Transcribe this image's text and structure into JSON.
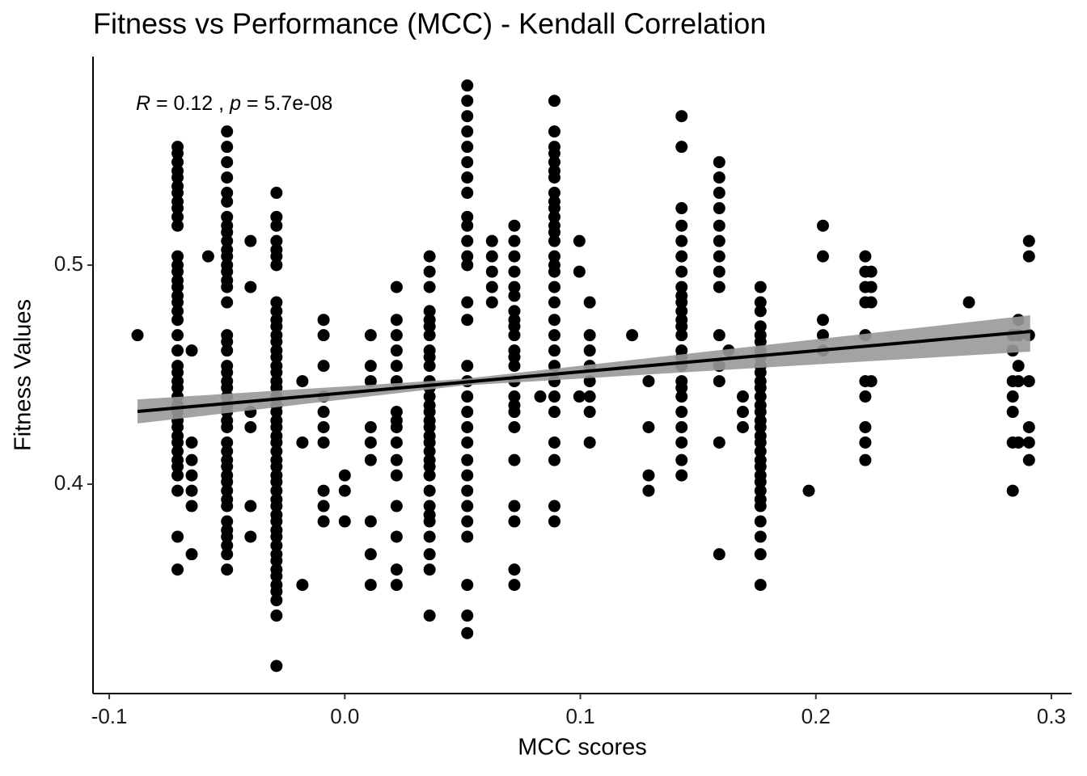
{
  "chart_data": {
    "type": "scatter",
    "title": "Fitness vs Performance (MCC) - Kendall Correlation",
    "x_label": "MCC scores",
    "y_label": "Fitness Values",
    "annotation": [
      "R",
      " = 0.12 , ",
      "p",
      " = 5.7e-08"
    ],
    "xlim": [
      -0.1069,
      0.3086
    ],
    "ylim": [
      0.3044,
      0.5952
    ],
    "xticks": [
      -0.1,
      {
        "value": 0,
        "label": "0.0"
      },
      0.1,
      0.2,
      0.3
    ],
    "yticks": [
      0.4,
      0.5
    ],
    "color": "#000000",
    "fit": {
      "x": [
        -0.088,
        0.291
      ],
      "y": [
        0.4332,
        0.4697
      ],
      "color": "#000000"
    },
    "band": {
      "x": [
        -0.088,
        0.05,
        0.291
      ],
      "lower": [
        0.4277,
        0.445,
        0.4605
      ],
      "upper": [
        0.4387,
        0.448,
        0.4771
      ],
      "color": "#999999"
    },
    "columns": [
      {
        "x": -0.088,
        "y": [
          0.468
        ]
      },
      {
        "x": -0.071,
        "y": [
          0.554,
          0.551,
          0.547,
          0.543,
          0.54,
          0.536,
          0.533,
          0.529,
          0.526,
          0.522,
          0.518,
          0.504,
          0.5,
          0.497,
          0.493,
          0.49,
          0.486,
          0.483,
          0.479,
          0.475,
          0.468,
          0.461,
          0.454,
          0.451,
          0.447,
          0.444,
          0.44,
          0.436,
          0.433,
          0.429,
          0.426,
          0.422,
          0.419,
          0.415,
          0.411,
          0.408,
          0.404,
          0.397,
          0.376,
          0.361
        ]
      },
      {
        "x": -0.065,
        "y": [
          0.461,
          0.419,
          0.411,
          0.404,
          0.397,
          0.39,
          0.368
        ]
      },
      {
        "x": -0.058,
        "y": [
          0.504
        ]
      },
      {
        "x": -0.05,
        "y": [
          0.561,
          0.554,
          0.547,
          0.54,
          0.533,
          0.529,
          0.522,
          0.518,
          0.515,
          0.511,
          0.507,
          0.504,
          0.5,
          0.497,
          0.493,
          0.49,
          0.483,
          0.468,
          0.465,
          0.461,
          0.454,
          0.451,
          0.447,
          0.444,
          0.44,
          0.436,
          0.433,
          0.429,
          0.426,
          0.419,
          0.415,
          0.411,
          0.408,
          0.404,
          0.401,
          0.397,
          0.393,
          0.39,
          0.383,
          0.379,
          0.376,
          0.372,
          0.368,
          0.361
        ]
      },
      {
        "x": -0.04,
        "y": [
          0.511,
          0.49,
          0.433,
          0.426,
          0.39,
          0.376
        ]
      },
      {
        "x": -0.029,
        "y": [
          0.533,
          0.522,
          0.518,
          0.511,
          0.507,
          0.504,
          0.5,
          0.483,
          0.479,
          0.475,
          0.472,
          0.468,
          0.465,
          0.461,
          0.458,
          0.454,
          0.451,
          0.447,
          0.444,
          0.44,
          0.436,
          0.433,
          0.429,
          0.426,
          0.422,
          0.419,
          0.415,
          0.411,
          0.408,
          0.404,
          0.401,
          0.397,
          0.393,
          0.39,
          0.386,
          0.383,
          0.379,
          0.376,
          0.372,
          0.368,
          0.365,
          0.361,
          0.358,
          0.354,
          0.351,
          0.347,
          0.34,
          0.317
        ]
      },
      {
        "x": -0.018,
        "y": [
          0.447,
          0.419,
          0.354
        ]
      },
      {
        "x": -0.009,
        "y": [
          0.475,
          0.468,
          0.454,
          0.44,
          0.433,
          0.426,
          0.419,
          0.397,
          0.39,
          0.383
        ]
      },
      {
        "x": 0.0,
        "y": [
          0.404,
          0.397,
          0.383
        ]
      },
      {
        "x": 0.011,
        "y": [
          0.468,
          0.454,
          0.447,
          0.426,
          0.419,
          0.411,
          0.383,
          0.368,
          0.354
        ]
      },
      {
        "x": 0.022,
        "y": [
          0.49,
          0.475,
          0.468,
          0.461,
          0.454,
          0.447,
          0.433,
          0.429,
          0.426,
          0.419,
          0.411,
          0.404,
          0.39,
          0.376,
          0.361,
          0.354
        ]
      },
      {
        "x": 0.036,
        "y": [
          0.504,
          0.497,
          0.49,
          0.479,
          0.475,
          0.472,
          0.468,
          0.461,
          0.458,
          0.454,
          0.447,
          0.444,
          0.44,
          0.436,
          0.433,
          0.429,
          0.426,
          0.422,
          0.419,
          0.415,
          0.411,
          0.408,
          0.404,
          0.397,
          0.39,
          0.386,
          0.383,
          0.376,
          0.368,
          0.361,
          0.34
        ]
      },
      {
        "x": 0.052,
        "y": [
          0.582,
          0.575,
          0.568,
          0.561,
          0.554,
          0.547,
          0.54,
          0.533,
          0.522,
          0.518,
          0.511,
          0.504,
          0.5,
          0.483,
          0.475,
          0.454,
          0.447,
          0.44,
          0.433,
          0.426,
          0.419,
          0.411,
          0.404,
          0.397,
          0.39,
          0.383,
          0.376,
          0.354,
          0.34,
          0.332
        ]
      },
      {
        "x": 0.0625,
        "y": [
          0.511,
          0.504,
          0.497,
          0.49,
          0.483
        ]
      },
      {
        "x": 0.072,
        "y": [
          0.518,
          0.511,
          0.504,
          0.497,
          0.49,
          0.486,
          0.479,
          0.475,
          0.472,
          0.468,
          0.461,
          0.458,
          0.454,
          0.447,
          0.44,
          0.436,
          0.433,
          0.426,
          0.411,
          0.39,
          0.383,
          0.361,
          0.354
        ]
      },
      {
        "x": 0.083,
        "y": [
          0.44
        ]
      },
      {
        "x": 0.089,
        "y": [
          0.575,
          0.561,
          0.554,
          0.551,
          0.547,
          0.543,
          0.54,
          0.533,
          0.529,
          0.526,
          0.522,
          0.518,
          0.515,
          0.511,
          0.504,
          0.5,
          0.497,
          0.49,
          0.483,
          0.475,
          0.468,
          0.461,
          0.454,
          0.447,
          0.44,
          0.433,
          0.419,
          0.411,
          0.39,
          0.383
        ]
      },
      {
        "x": 0.0996,
        "y": [
          0.511,
          0.497,
          0.44
        ]
      },
      {
        "x": 0.104,
        "y": [
          0.483,
          0.468,
          0.461,
          0.454,
          0.447,
          0.44,
          0.433,
          0.419
        ]
      },
      {
        "x": 0.122,
        "y": [
          0.468
        ]
      },
      {
        "x": 0.129,
        "y": [
          0.447,
          0.426,
          0.404,
          0.397
        ]
      },
      {
        "x": 0.143,
        "y": [
          0.568,
          0.554,
          0.526,
          0.518,
          0.511,
          0.504,
          0.497,
          0.49,
          0.486,
          0.483,
          0.479,
          0.475,
          0.472,
          0.468,
          0.461,
          0.458,
          0.454,
          0.447,
          0.444,
          0.44,
          0.433,
          0.426,
          0.419,
          0.411,
          0.404
        ]
      },
      {
        "x": 0.159,
        "y": [
          0.547,
          0.54,
          0.533,
          0.526,
          0.518,
          0.511,
          0.504,
          0.497,
          0.49,
          0.468,
          0.454,
          0.447,
          0.419,
          0.368
        ]
      },
      {
        "x": 0.163,
        "y": [
          0.461
        ]
      },
      {
        "x": 0.169,
        "y": [
          0.44,
          0.433,
          0.426
        ]
      },
      {
        "x": 0.1765,
        "y": [
          0.49,
          0.483,
          0.479,
          0.472,
          0.468,
          0.465,
          0.461,
          0.458,
          0.454,
          0.451,
          0.447,
          0.444,
          0.44,
          0.436,
          0.433,
          0.429,
          0.426,
          0.422,
          0.419,
          0.415,
          0.411,
          0.408,
          0.404,
          0.401,
          0.397,
          0.393,
          0.39,
          0.383,
          0.376,
          0.368,
          0.354
        ]
      },
      {
        "x": 0.197,
        "y": [
          0.397
        ]
      },
      {
        "x": 0.203,
        "y": [
          0.518,
          0.504,
          0.475,
          0.468,
          0.461
        ]
      },
      {
        "x": 0.221,
        "y": [
          0.504,
          0.497,
          0.49,
          0.483,
          0.468,
          0.447,
          0.44,
          0.426,
          0.419,
          0.411
        ]
      },
      {
        "x": 0.2235,
        "y": [
          0.497,
          0.49,
          0.483,
          0.447
        ]
      },
      {
        "x": 0.265,
        "y": [
          0.483
        ]
      },
      {
        "x": 0.2836,
        "y": [
          0.468,
          0.461,
          0.447,
          0.44,
          0.433,
          0.419,
          0.397
        ]
      },
      {
        "x": 0.286,
        "y": [
          0.475,
          0.468,
          0.454,
          0.447,
          0.419
        ]
      },
      {
        "x": 0.2905,
        "y": [
          0.511,
          0.504,
          0.468,
          0.447,
          0.426,
          0.419,
          0.411
        ]
      }
    ]
  }
}
